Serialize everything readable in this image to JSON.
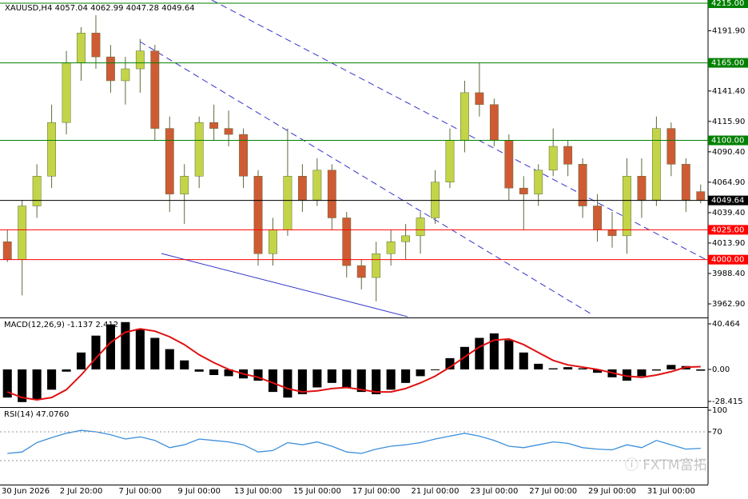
{
  "chart_data": [
    {
      "type": "candlestick",
      "title": "XAUUSD,H4  4057.04 4062.99 4047.28 4049.64",
      "categories": [
        "30 Jun 2026",
        null,
        null,
        null,
        null,
        "2 Jul 20:00",
        null,
        null,
        null,
        "7 Jul 00:00",
        null,
        null,
        null,
        "9 Jul 00:00",
        null,
        null,
        null,
        "13 Jul 00:00",
        null,
        null,
        null,
        "15 Jul 00:00",
        null,
        null,
        null,
        "17 Jul 00:00",
        null,
        null,
        null,
        "21 Jul 00:00",
        null,
        null,
        null,
        "23 Jul 00:00",
        null,
        null,
        null,
        "27 Jul 00:00",
        null,
        null,
        null,
        "29 Jul 00:00",
        null,
        null,
        null,
        "31 Jul 00:00",
        null,
        null
      ],
      "open": [
        4015,
        4000,
        4045,
        4070,
        4115,
        4165,
        4190,
        4170,
        4150,
        4160,
        4175,
        4110,
        4055,
        4070,
        4115,
        4110,
        4105,
        4070,
        4005,
        4025,
        4070,
        4050,
        4075,
        4035,
        3995,
        3985,
        4005,
        4015,
        4020,
        4035,
        4065,
        4100,
        4140,
        4130,
        4100,
        4060,
        4055,
        4075,
        4095,
        4080,
        4045,
        4025,
        4020,
        4070,
        4050,
        4110,
        4080,
        4057.04
      ],
      "high": [
        4025,
        4050,
        4080,
        4130,
        4175,
        4195,
        4205,
        4180,
        4170,
        4185,
        4180,
        4120,
        4080,
        4120,
        4130,
        4125,
        4110,
        4075,
        4035,
        4110,
        4080,
        4085,
        4080,
        4040,
        4000,
        4015,
        4025,
        4030,
        4040,
        4075,
        4110,
        4150,
        4165,
        4135,
        4105,
        4070,
        4080,
        4110,
        4100,
        4085,
        4055,
        4040,
        4085,
        4085,
        4120,
        4115,
        4085,
        4062.99
      ],
      "low": [
        3998,
        3970,
        4035,
        4060,
        4105,
        4150,
        4160,
        4140,
        4130,
        4140,
        4100,
        4040,
        4030,
        4060,
        4100,
        4095,
        4060,
        3995,
        3995,
        4020,
        4040,
        4045,
        4025,
        3985,
        3975,
        3965,
        3995,
        4000,
        4005,
        4030,
        4060,
        4090,
        4120,
        4095,
        4050,
        4025,
        4045,
        4070,
        4070,
        4035,
        4015,
        4010,
        4005,
        4035,
        4045,
        4070,
        4040,
        4047.28
      ],
      "close": [
        4000,
        4045,
        4070,
        4115,
        4165,
        4190,
        4170,
        4150,
        4160,
        4175,
        4110,
        4055,
        4070,
        4115,
        4110,
        4105,
        4070,
        4005,
        4025,
        4070,
        4050,
        4075,
        4035,
        3995,
        3985,
        4005,
        4015,
        4020,
        4035,
        4065,
        4100,
        4140,
        4130,
        4100,
        4060,
        4055,
        4075,
        4095,
        4080,
        4045,
        4025,
        4020,
        4070,
        4050,
        4110,
        4080,
        4050,
        4049.64
      ],
      "up_color": "#c3d448",
      "down_color": "#cf5b34",
      "wick_color": "#5a6b3a",
      "ylim": [
        3951.5,
        4217.7
      ],
      "yticks": [
        {
          "value": 4191.9,
          "label": "4191.90"
        },
        {
          "value": 4141.4,
          "label": "4141.40"
        },
        {
          "value": 4115.9,
          "label": "4115.90"
        },
        {
          "value": 4090.4,
          "label": "4090.40"
        },
        {
          "value": 4064.9,
          "label": "4064.90"
        },
        {
          "value": 4039.4,
          "label": "4039.40"
        },
        {
          "value": 4013.9,
          "label": "4013.90"
        },
        {
          "value": 3988.4,
          "label": "3988.40"
        },
        {
          "value": 3962.9,
          "label": "3962.90"
        }
      ],
      "levels": [
        {
          "value": 4215,
          "label": "4215.00",
          "color": "#008000"
        },
        {
          "value": 4165,
          "label": "4165.00",
          "color": "#008000"
        },
        {
          "value": 4100,
          "label": "4100.00",
          "color": "#008000"
        },
        {
          "value": 4049.64,
          "color": "#000000"
        },
        {
          "value": 4025,
          "label": "4025.00",
          "color": "#ff0000"
        },
        {
          "value": 4000,
          "label": "4000.00",
          "color": "#ff0000"
        }
      ],
      "watermark": "ⓘ FXTM富拓"
    },
    {
      "type": "macd",
      "title": "MACD(12,26,9) -1.137 2.412",
      "series": [
        {
          "name": "MACD",
          "color": "#000000",
          "values": [
            -25,
            -29,
            -27,
            -18,
            -2,
            15,
            30,
            40,
            42,
            36,
            28,
            18,
            8,
            -2,
            -5,
            -6,
            -8,
            -10,
            -20,
            -25,
            -22,
            -16,
            -12,
            -16,
            -20,
            -22,
            -18,
            -12,
            -6,
            0,
            10,
            20,
            28,
            32,
            26,
            15,
            5,
            1,
            2,
            1,
            -3,
            -7,
            -10,
            -6,
            -1,
            4,
            3,
            -1.137
          ]
        },
        {
          "name": "Signal",
          "color": "#e01010",
          "values": [
            -20,
            -25,
            -27,
            -25,
            -18,
            -5,
            10,
            24,
            33,
            36,
            34,
            29,
            22,
            13,
            6,
            0,
            -4,
            -7,
            -12,
            -17,
            -20,
            -19,
            -17,
            -16,
            -18,
            -20,
            -20,
            -17,
            -12,
            -6,
            2,
            11,
            20,
            26,
            27,
            22,
            15,
            8,
            4,
            2,
            0,
            -3,
            -6,
            -7,
            -5,
            -2,
            2,
            2.412
          ]
        }
      ],
      "ylim": [
        -32.7,
        44.7
      ],
      "yticks": [
        40.464,
        {
          "value": 0,
          "label": "0.00"
        },
        -28.415
      ]
    },
    {
      "type": "line",
      "title": "RSI(14) 47.0760",
      "series": [
        {
          "name": "RSI",
          "color": "#3c8fdc",
          "values": [
            40,
            42,
            55,
            62,
            68,
            72,
            70,
            66,
            60,
            63,
            58,
            48,
            52,
            60,
            58,
            56,
            52,
            42,
            44,
            55,
            52,
            56,
            50,
            42,
            40,
            46,
            50,
            52,
            55,
            60,
            64,
            68,
            64,
            58,
            50,
            48,
            52,
            56,
            54,
            48,
            46,
            45,
            52,
            48,
            58,
            52,
            46,
            47.076
          ]
        }
      ],
      "ylim": [
        0,
        100
      ],
      "yticks": [
        100,
        70
      ],
      "levels": [
        70,
        30
      ]
    }
  ]
}
